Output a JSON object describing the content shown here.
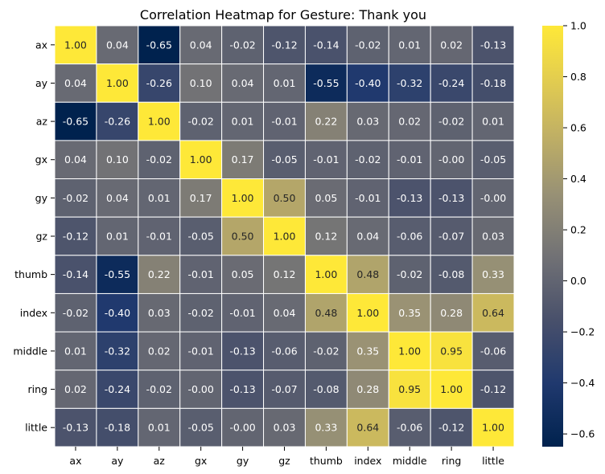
{
  "chart_data": {
    "type": "heatmap",
    "title": "Correlation Heatmap for Gesture: Thank you",
    "xlabel": "",
    "ylabel": "",
    "x_categories": [
      "ax",
      "ay",
      "az",
      "gx",
      "gy",
      "gz",
      "thumb",
      "index",
      "middle",
      "ring",
      "little"
    ],
    "y_categories": [
      "ax",
      "ay",
      "az",
      "gx",
      "gy",
      "gz",
      "thumb",
      "index",
      "middle",
      "ring",
      "little"
    ],
    "values": [
      [
        1.0,
        0.04,
        -0.65,
        0.04,
        -0.02,
        -0.12,
        -0.14,
        -0.02,
        0.01,
        0.02,
        -0.13
      ],
      [
        0.04,
        1.0,
        -0.26,
        0.1,
        0.04,
        0.01,
        -0.55,
        -0.4,
        -0.32,
        -0.24,
        -0.18
      ],
      [
        -0.65,
        -0.26,
        1.0,
        -0.02,
        0.01,
        -0.01,
        0.22,
        0.03,
        0.02,
        -0.02,
        0.01
      ],
      [
        0.04,
        0.1,
        -0.02,
        1.0,
        0.17,
        -0.05,
        -0.01,
        -0.02,
        -0.01,
        -0.0,
        -0.05
      ],
      [
        -0.02,
        0.04,
        0.01,
        0.17,
        1.0,
        0.5,
        0.05,
        -0.01,
        -0.13,
        -0.13,
        -0.0
      ],
      [
        -0.12,
        0.01,
        -0.01,
        -0.05,
        0.5,
        1.0,
        0.12,
        0.04,
        -0.06,
        -0.07,
        0.03
      ],
      [
        -0.14,
        -0.55,
        0.22,
        -0.01,
        0.05,
        0.12,
        1.0,
        0.48,
        -0.02,
        -0.08,
        0.33
      ],
      [
        -0.02,
        -0.4,
        0.03,
        -0.02,
        -0.01,
        0.04,
        0.48,
        1.0,
        0.35,
        0.28,
        0.64
      ],
      [
        0.01,
        -0.32,
        0.02,
        -0.01,
        -0.13,
        -0.06,
        -0.02,
        0.35,
        1.0,
        0.95,
        -0.06
      ],
      [
        0.02,
        -0.24,
        -0.02,
        -0.0,
        -0.13,
        -0.07,
        -0.08,
        0.28,
        0.95,
        1.0,
        -0.12
      ],
      [
        -0.13,
        -0.18,
        0.01,
        -0.05,
        -0.0,
        0.03,
        0.33,
        0.64,
        -0.06,
        -0.12,
        1.0
      ]
    ],
    "cell_labels": [
      [
        "1.00",
        "0.04",
        "-0.65",
        "0.04",
        "-0.02",
        "-0.12",
        "-0.14",
        "-0.02",
        "0.01",
        "0.02",
        "-0.13"
      ],
      [
        "0.04",
        "1.00",
        "-0.26",
        "0.10",
        "0.04",
        "0.01",
        "-0.55",
        "-0.40",
        "-0.32",
        "-0.24",
        "-0.18"
      ],
      [
        "-0.65",
        "-0.26",
        "1.00",
        "-0.02",
        "0.01",
        "-0.01",
        "0.22",
        "0.03",
        "0.02",
        "-0.02",
        "0.01"
      ],
      [
        "0.04",
        "0.10",
        "-0.02",
        "1.00",
        "0.17",
        "-0.05",
        "-0.01",
        "-0.02",
        "-0.01",
        "-0.00",
        "-0.05"
      ],
      [
        "-0.02",
        "0.04",
        "0.01",
        "0.17",
        "1.00",
        "0.50",
        "0.05",
        "-0.01",
        "-0.13",
        "-0.13",
        "-0.00"
      ],
      [
        "-0.12",
        "0.01",
        "-0.01",
        "-0.05",
        "0.50",
        "1.00",
        "0.12",
        "0.04",
        "-0.06",
        "-0.07",
        "0.03"
      ],
      [
        "-0.14",
        "-0.55",
        "0.22",
        "-0.01",
        "0.05",
        "0.12",
        "1.00",
        "0.48",
        "-0.02",
        "-0.08",
        "0.33"
      ],
      [
        "-0.02",
        "-0.40",
        "0.03",
        "-0.02",
        "-0.01",
        "0.04",
        "0.48",
        "1.00",
        "0.35",
        "0.28",
        "0.64"
      ],
      [
        "0.01",
        "-0.32",
        "0.02",
        "-0.01",
        "-0.13",
        "-0.06",
        "-0.02",
        "0.35",
        "1.00",
        "0.95",
        "-0.06"
      ],
      [
        "0.02",
        "-0.24",
        "-0.02",
        "-0.00",
        "-0.13",
        "-0.07",
        "-0.08",
        "0.28",
        "0.95",
        "1.00",
        "-0.12"
      ],
      [
        "-0.13",
        "-0.18",
        "0.01",
        "-0.05",
        "-0.00",
        "0.03",
        "0.33",
        "0.64",
        "-0.06",
        "-0.12",
        "1.00"
      ]
    ],
    "colormap": "cividis",
    "vmin": -0.65,
    "vmax": 1.0,
    "cell_separator_color": "#ffffff",
    "colorbar": {
      "ticks": [
        1.0,
        0.8,
        0.6,
        0.4,
        0.2,
        0.0,
        -0.2,
        -0.4,
        -0.6
      ],
      "tick_labels": [
        "1.0",
        "0.8",
        "0.6",
        "0.4",
        "0.2",
        "0.0",
        "−0.2",
        "−0.4",
        "−0.6"
      ]
    }
  }
}
